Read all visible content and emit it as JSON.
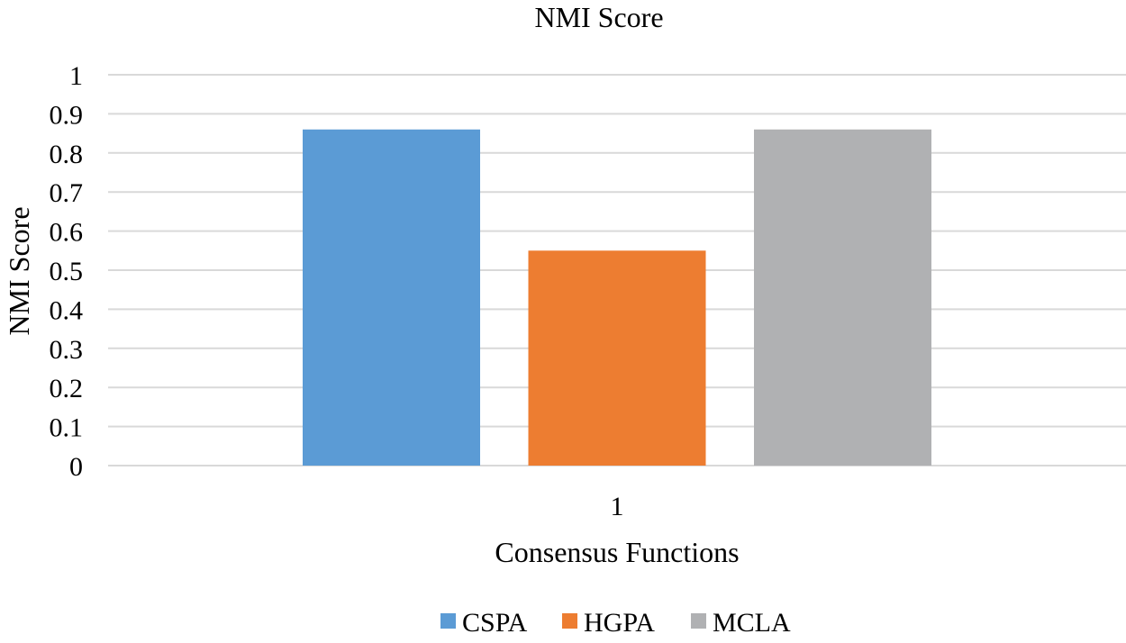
{
  "chart_data": {
    "type": "bar",
    "title": "NMI Score",
    "xlabel": "Consensus Functions",
    "ylabel": "NMI Score",
    "categories": [
      "1"
    ],
    "ylim": [
      0,
      1
    ],
    "yticks": [
      "0",
      "0.1",
      "0.2",
      "0.3",
      "0.4",
      "0.5",
      "0.6",
      "0.7",
      "0.8",
      "0.9",
      "1"
    ],
    "grid": true,
    "legend_position": "bottom",
    "series": [
      {
        "name": "CSPA",
        "values": [
          0.86
        ],
        "color": "#5b9bd5"
      },
      {
        "name": "HGPA",
        "values": [
          0.55
        ],
        "color": "#ed7d31"
      },
      {
        "name": "MCLA",
        "values": [
          0.86
        ],
        "color": "#b0b1b3"
      }
    ]
  }
}
